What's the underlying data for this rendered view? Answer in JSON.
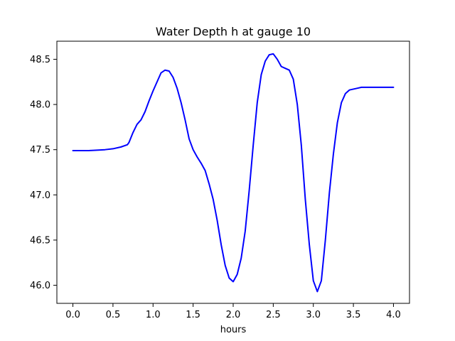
{
  "chart_data": {
    "type": "line",
    "title": "Water Depth h at gauge 10",
    "xlabel": "hours",
    "ylabel": "",
    "xlim": [
      -0.2,
      4.2
    ],
    "ylim": [
      45.8,
      48.7
    ],
    "xticks": [
      0.0,
      0.5,
      1.0,
      1.5,
      2.0,
      2.5,
      3.0,
      3.5,
      4.0
    ],
    "xtick_labels": [
      "0.0",
      "0.5",
      "1.0",
      "1.5",
      "2.0",
      "2.5",
      "3.0",
      "3.5",
      "4.0"
    ],
    "yticks": [
      46.0,
      46.5,
      47.0,
      47.5,
      48.0,
      48.5
    ],
    "ytick_labels": [
      "46.0",
      "46.5",
      "47.0",
      "47.5",
      "48.0",
      "48.5"
    ],
    "grid": false,
    "series": [
      {
        "color": "#0000ff",
        "x": [
          0.0,
          0.1,
          0.2,
          0.3,
          0.4,
          0.5,
          0.6,
          0.68,
          0.7,
          0.75,
          0.8,
          0.85,
          0.9,
          0.95,
          1.0,
          1.05,
          1.1,
          1.15,
          1.2,
          1.25,
          1.3,
          1.35,
          1.4,
          1.45,
          1.5,
          1.55,
          1.6,
          1.65,
          1.7,
          1.75,
          1.8,
          1.85,
          1.9,
          1.95,
          2.0,
          2.05,
          2.1,
          2.15,
          2.2,
          2.25,
          2.3,
          2.35,
          2.4,
          2.45,
          2.5,
          2.55,
          2.6,
          2.65,
          2.7,
          2.75,
          2.8,
          2.85,
          2.9,
          2.95,
          3.0,
          3.05,
          3.1,
          3.15,
          3.2,
          3.25,
          3.3,
          3.35,
          3.4,
          3.45,
          3.5,
          3.55,
          3.6,
          3.65,
          3.7,
          3.75,
          3.8,
          3.85,
          3.9,
          3.95,
          4.0
        ],
        "y": [
          47.49,
          47.49,
          47.49,
          47.495,
          47.5,
          47.51,
          47.53,
          47.555,
          47.58,
          47.69,
          47.78,
          47.83,
          47.92,
          48.04,
          48.15,
          48.25,
          48.35,
          48.38,
          48.37,
          48.3,
          48.18,
          48.02,
          47.83,
          47.62,
          47.5,
          47.42,
          47.35,
          47.27,
          47.12,
          46.95,
          46.72,
          46.45,
          46.22,
          46.08,
          46.04,
          46.12,
          46.3,
          46.6,
          47.05,
          47.55,
          48.02,
          48.33,
          48.48,
          48.55,
          48.56,
          48.5,
          48.42,
          48.4,
          48.38,
          48.28,
          48.0,
          47.55,
          46.95,
          46.45,
          46.05,
          45.93,
          46.05,
          46.5,
          47.02,
          47.45,
          47.8,
          48.02,
          48.12,
          48.16,
          48.17,
          48.18,
          48.19,
          48.19,
          48.19,
          48.19,
          48.19,
          48.19,
          48.19,
          48.19,
          48.19
        ]
      }
    ]
  }
}
